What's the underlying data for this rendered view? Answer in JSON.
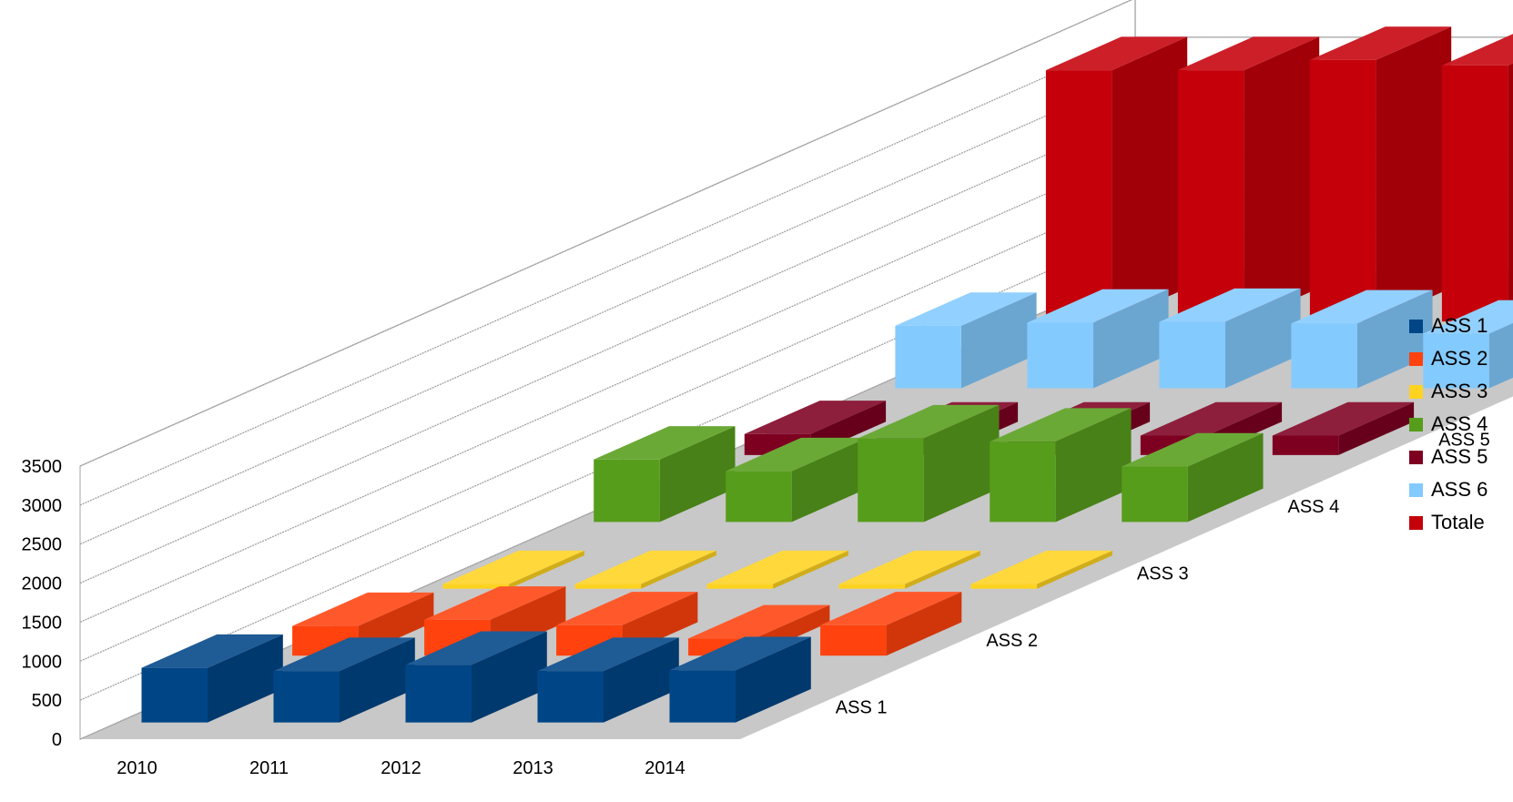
{
  "chart_data": {
    "type": "bar",
    "style": "3d-deep",
    "categories": [
      "2010",
      "2011",
      "2012",
      "2013",
      "2014"
    ],
    "series": [
      {
        "name": "ASS 1",
        "color": "#004586",
        "values": [
          700,
          660,
          740,
          660,
          670
        ]
      },
      {
        "name": "ASS 2",
        "color": "#ff420e",
        "values": [
          380,
          460,
          390,
          220,
          390
        ]
      },
      {
        "name": "ASS 3",
        "color": "#ffd320",
        "values": [
          60,
          60,
          60,
          60,
          60
        ]
      },
      {
        "name": "ASS 4",
        "color": "#579d1c",
        "values": [
          800,
          650,
          1070,
          1030,
          710
        ]
      },
      {
        "name": "ASS 5",
        "color": "#7e0021",
        "values": [
          270,
          250,
          250,
          250,
          250
        ]
      },
      {
        "name": "ASS 6",
        "color": "#83caff",
        "values": [
          800,
          840,
          850,
          830,
          700
        ]
      },
      {
        "name": "Totale",
        "color": "#c5000b",
        "values": [
          3220,
          3220,
          3350,
          3280,
          3040
        ]
      }
    ],
    "yticks": [
      "0",
      "500",
      "1000",
      "1500",
      "2000",
      "2500",
      "3000",
      "3500"
    ],
    "ylim": [
      0,
      3500
    ],
    "grid": true,
    "legend_position": "right"
  }
}
